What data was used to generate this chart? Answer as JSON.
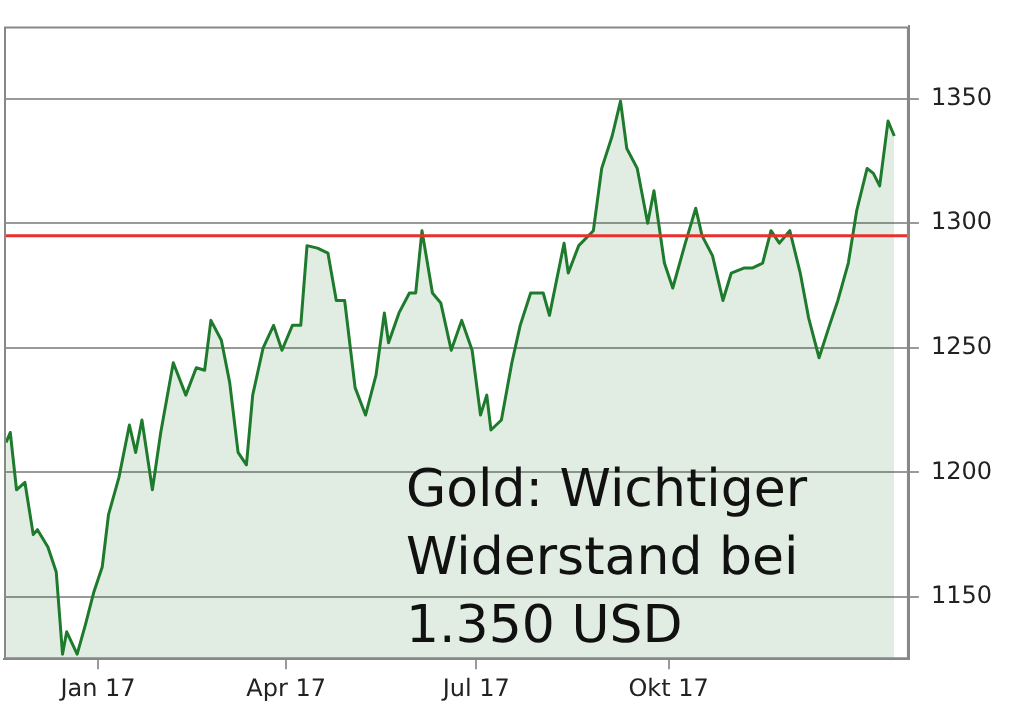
{
  "chart_data": {
    "type": "area",
    "x": [
      "2016-11-18",
      "2016-11-20",
      "2016-11-23",
      "2016-11-27",
      "2016-12-01",
      "2016-12-03",
      "2016-12-08",
      "2016-12-12",
      "2016-12-15",
      "2016-12-17",
      "2016-12-22",
      "2016-12-26",
      "2016-12-30",
      "2017-01-03",
      "2017-01-06",
      "2017-01-11",
      "2017-01-16",
      "2017-01-19",
      "2017-01-22",
      "2017-01-27",
      "2017-01-31",
      "2017-02-06",
      "2017-02-12",
      "2017-02-17",
      "2017-02-21",
      "2017-02-24",
      "2017-03-01",
      "2017-03-05",
      "2017-03-09",
      "2017-03-13",
      "2017-03-16",
      "2017-03-21",
      "2017-03-26",
      "2017-03-30",
      "2017-04-04",
      "2017-04-08",
      "2017-04-11",
      "2017-04-16",
      "2017-04-21",
      "2017-04-25",
      "2017-04-29",
      "2017-05-04",
      "2017-05-09",
      "2017-05-14",
      "2017-05-18",
      "2017-05-20",
      "2017-05-25",
      "2017-05-30",
      "2017-06-02",
      "2017-06-05",
      "2017-06-10",
      "2017-06-14",
      "2017-06-19",
      "2017-06-24",
      "2017-06-29",
      "2017-07-03",
      "2017-07-06",
      "2017-07-08",
      "2017-07-13",
      "2017-07-18",
      "2017-07-22",
      "2017-07-27",
      "2017-08-02",
      "2017-08-05",
      "2017-08-12",
      "2017-08-14",
      "2017-08-19",
      "2017-08-26",
      "2017-08-30",
      "2017-09-04",
      "2017-09-08",
      "2017-09-11",
      "2017-09-16",
      "2017-09-21",
      "2017-09-24",
      "2017-09-29",
      "2017-10-03",
      "2017-10-09",
      "2017-10-14",
      "2017-10-17",
      "2017-10-22",
      "2017-10-27",
      "2017-10-31",
      "2017-11-06",
      "2017-11-10",
      "2017-11-15",
      "2017-11-19",
      "2017-11-23",
      "2017-11-28",
      "2017-12-03",
      "2017-12-07",
      "2017-12-12",
      "2017-12-17",
      "2017-12-21",
      "2017-12-26",
      "2017-12-30",
      "2018-01-04",
      "2018-01-07",
      "2018-01-10",
      "2018-01-14",
      "2018-01-17"
    ],
    "series": [
      {
        "color": "#1e7a2c",
        "values": [
          1212,
          1216,
          1193,
          1196,
          1175,
          1177,
          1170,
          1160,
          1127,
          1136,
          1127,
          1139,
          1152,
          1162,
          1183,
          1198,
          1219,
          1208,
          1221,
          1193,
          1216,
          1244,
          1231,
          1242,
          1241,
          1261,
          1253,
          1236,
          1208,
          1203,
          1231,
          1250,
          1259,
          1249,
          1259,
          1259,
          1291,
          1290,
          1288,
          1269,
          1269,
          1234,
          1223,
          1239,
          1264,
          1252,
          1264,
          1272,
          1272,
          1297,
          1272,
          1268,
          1249,
          1261,
          1249,
          1223,
          1231,
          1217,
          1221,
          1244,
          1259,
          1272,
          1272,
          1263,
          1292,
          1280,
          1291,
          1297,
          1322,
          1335,
          1349,
          1330,
          1322,
          1300,
          1313,
          1284,
          1274,
          1292,
          1306,
          1295,
          1287,
          1269,
          1280,
          1282,
          1282,
          1284,
          1297,
          1292,
          1297,
          1280,
          1262,
          1246,
          1259,
          1269,
          1284,
          1305,
          1322,
          1320,
          1315,
          1341,
          1335
        ]
      }
    ],
    "xlim": [
      "2016-11-17",
      "2018-01-24"
    ],
    "xticks": [
      {
        "value": "2017-01-01",
        "label": "Jan 17"
      },
      {
        "value": "2017-04-01",
        "label": "Apr 17"
      },
      {
        "value": "2017-07-01",
        "label": "Jul 17"
      },
      {
        "value": "2017-10-01",
        "label": "Okt 17"
      }
    ],
    "ylim": [
      1125,
      1379
    ],
    "yticks": [
      1150,
      1200,
      1250,
      1300,
      1350
    ],
    "grid": "y",
    "ref_lines": [
      {
        "axis": "y",
        "value": 1295,
        "color": "#e8312f"
      }
    ],
    "annotations": [
      "Gold: Wichtiger Widerstand bei 1.350 USD"
    ]
  }
}
